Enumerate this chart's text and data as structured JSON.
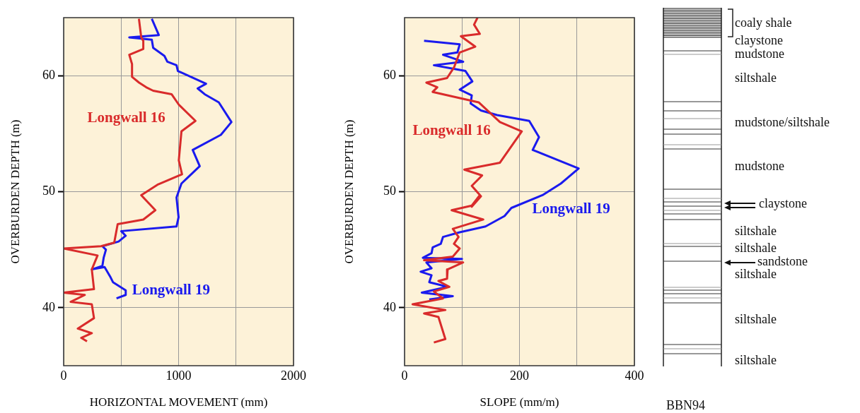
{
  "chart_data": [
    {
      "type": "line",
      "xlabel": "HORIZONTAL MOVEMENT (mm)",
      "ylabel": "OVERBURDEN DEPTH (m)",
      "xlim": [
        0,
        2000
      ],
      "xticks": [
        0,
        {
          "value": 500,
          "label": null
        },
        1000,
        {
          "value": 1500,
          "label": null
        },
        2000
      ],
      "ylim": [
        35,
        65
      ],
      "yticks": [
        40,
        50,
        60
      ],
      "grid": true,
      "series": [
        {
          "name": "Longwall 16",
          "color": "#d92b2b",
          "x": [
            655,
            675,
            693,
            693,
            571,
            595,
            595,
            656,
            718,
            779,
            939,
            1002,
            1147,
            1025,
            1002,
            1030,
            816,
            675,
            798,
            693,
            470,
            440,
            325,
            0,
            295,
            245,
            264,
            0,
            184,
            61,
            245,
            264,
            123,
            245,
            153,
            203
          ],
          "values": [
            64.9,
            63.3,
            63.0,
            62.3,
            61.8,
            61.0,
            59.9,
            59.4,
            59.0,
            58.7,
            58.4,
            57.5,
            56.1,
            55.2,
            52.7,
            51.5,
            50.6,
            49.7,
            48.4,
            47.6,
            47.2,
            45.6,
            45.3,
            45.1,
            44.5,
            43.3,
            41.6,
            41.3,
            41.1,
            40.5,
            40.3,
            39.1,
            38.2,
            37.8,
            37.4,
            37.1
          ]
        },
        {
          "name": "Longwall 19",
          "color": "#1a1aee",
          "x": [
            767,
            828,
            571,
            767,
            779,
            877,
            902,
            982,
            994,
            1239,
            1166,
            1227,
            1350,
            1460,
            1368,
            1123,
            1184,
            1025,
            982,
            1000,
            982,
            501,
            540,
            478,
            337,
            368,
            348,
            337,
            245,
            356,
            409,
            429,
            540,
            540,
            460
          ],
          "values": [
            64.9,
            63.5,
            63.3,
            63.1,
            62.4,
            61.7,
            61.2,
            60.9,
            60.4,
            59.3,
            58.9,
            58.4,
            57.7,
            56.0,
            54.9,
            53.6,
            52.2,
            50.7,
            49.5,
            47.8,
            47.0,
            46.6,
            46.2,
            45.7,
            45.3,
            45.0,
            44.3,
            43.6,
            43.3,
            43.5,
            42.6,
            42.2,
            41.5,
            41.1,
            40.8
          ]
        }
      ]
    },
    {
      "type": "line",
      "xlabel": "SLOPE (mm/m)",
      "ylabel": "OVERBURDEN DEPTH (m)",
      "xlim": [
        0,
        400
      ],
      "xticks": [
        0,
        {
          "value": 100,
          "label": null
        },
        200,
        {
          "value": 300,
          "label": null
        },
        400
      ],
      "ylim": [
        35,
        65
      ],
      "yticks": [
        40,
        50,
        60
      ],
      "grid": true,
      "series": [
        {
          "name": "Longwall 16",
          "color": "#d92b2b",
          "x": [
            127,
            121,
            131,
            98,
            123,
            96,
            86,
            74,
            38,
            57,
            49,
            129,
            166,
            204,
            166,
            104,
            135,
            117,
            133,
            117,
            131,
            117,
            82,
            137,
            84,
            94,
            86,
            96,
            84,
            34,
            102,
            75,
            74,
            59,
            78,
            51,
            67,
            14,
            71,
            34,
            59,
            71,
            51
          ],
          "values": [
            65.0,
            64.4,
            63.6,
            63.4,
            62.5,
            62.0,
            60.7,
            59.8,
            59.4,
            59.0,
            58.6,
            57.7,
            56.0,
            55.2,
            52.5,
            51.9,
            51.4,
            50.5,
            49.6,
            48.7,
            49.7,
            48.8,
            48.4,
            47.6,
            46.8,
            46.1,
            45.5,
            45.1,
            44.4,
            44.1,
            43.9,
            43.3,
            42.5,
            42.3,
            41.8,
            41.4,
            40.8,
            40.3,
            39.8,
            39.5,
            39.2,
            37.3,
            37.0
          ]
        },
        {
          "name": "Longwall 19",
          "color": "#1a1aee",
          "x": [
            34,
            96,
            92,
            67,
            102,
            51,
            84,
            106,
            118,
            96,
            117,
            115,
            133,
            161,
            217,
            234,
            223,
            303,
            272,
            240,
            186,
            174,
            141,
            96,
            67,
            63,
            49,
            47,
            32,
            100,
            38,
            47,
            28,
            47,
            43,
            75,
            30,
            84,
            43
          ],
          "values": [
            63.0,
            62.7,
            62.0,
            61.8,
            61.2,
            60.9,
            60.6,
            60.4,
            59.5,
            58.8,
            58.3,
            57.6,
            57.0,
            56.6,
            56.1,
            54.7,
            53.6,
            52.0,
            50.7,
            49.7,
            48.6,
            47.9,
            47.0,
            46.5,
            46.1,
            45.5,
            45.2,
            44.7,
            44.3,
            44.2,
            43.9,
            43.4,
            43.1,
            42.8,
            42.2,
            41.8,
            41.3,
            41.0,
            40.7
          ]
        }
      ]
    },
    {
      "type": "other",
      "title": "BBN94",
      "annotations": [
        "coaly shale",
        "claystone",
        "mudstone",
        "siltshale",
        "mudstone/siltshale",
        "mudstone",
        "claystone",
        "siltshale",
        "siltshale",
        "sandstone",
        "siltshale",
        "siltshale",
        "siltshale"
      ]
    }
  ]
}
